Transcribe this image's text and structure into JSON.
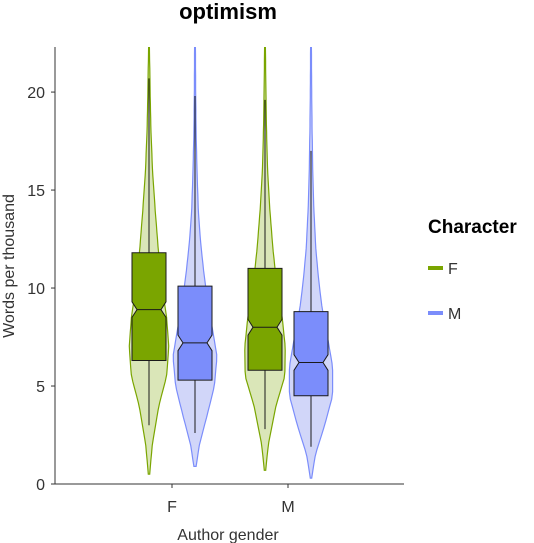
{
  "chart_data": {
    "type": "violin",
    "title": "optimism",
    "xlabel": "Author gender",
    "ylabel": "Words per thousand",
    "ylim": [
      0,
      22.3
    ],
    "yticks": [
      0,
      5,
      10,
      15,
      20
    ],
    "categories": [
      "F",
      "M"
    ],
    "legend": {
      "title": "Character",
      "position": "right",
      "entries": [
        {
          "label": "F",
          "color": "#7aa500"
        },
        {
          "label": "M",
          "color": "#7b8dfb"
        }
      ]
    },
    "series": [
      {
        "name": "F",
        "color": "#7aa500",
        "fill": "#d1e0a6",
        "groups": [
          {
            "category": "F",
            "min": 0.5,
            "max": 22.3,
            "whisker_low": 3.0,
            "whisker_high": 20.7,
            "q1": 6.3,
            "median": 8.9,
            "q3": 11.8,
            "notch_low": 8.5,
            "notch_high": 9.3,
            "density": [
              [
                0.5,
                0.03
              ],
              [
                2,
                0.15
              ],
              [
                4,
                0.45
              ],
              [
                5.5,
                0.8
              ],
              [
                7,
                0.9
              ],
              [
                8.5,
                0.8
              ],
              [
                10,
                0.6
              ],
              [
                12,
                0.42
              ],
              [
                14,
                0.28
              ],
              [
                16,
                0.16
              ],
              [
                18,
                0.09
              ],
              [
                20,
                0.05
              ],
              [
                22.3,
                0.02
              ]
            ]
          },
          {
            "category": "M",
            "min": 0.7,
            "max": 22.3,
            "whisker_low": 2.8,
            "whisker_high": 19.6,
            "q1": 5.8,
            "median": 8.0,
            "q3": 11.0,
            "notch_low": 7.6,
            "notch_high": 8.4,
            "density": [
              [
                0.7,
                0.03
              ],
              [
                2,
                0.15
              ],
              [
                4,
                0.5
              ],
              [
                5.5,
                0.9
              ],
              [
                7,
                0.92
              ],
              [
                8.5,
                0.78
              ],
              [
                10,
                0.55
              ],
              [
                12,
                0.36
              ],
              [
                14,
                0.22
              ],
              [
                16,
                0.12
              ],
              [
                18,
                0.07
              ],
              [
                20,
                0.04
              ],
              [
                22.3,
                0.02
              ]
            ]
          }
        ]
      },
      {
        "name": "M",
        "color": "#7b8dfb",
        "fill": "#c6ccf8",
        "groups": [
          {
            "category": "F",
            "min": 0.9,
            "max": 22.3,
            "whisker_low": 2.6,
            "whisker_high": 19.8,
            "q1": 5.3,
            "median": 7.2,
            "q3": 10.1,
            "notch_low": 6.8,
            "notch_high": 7.6,
            "density": [
              [
                0.9,
                0.05
              ],
              [
                2,
                0.2
              ],
              [
                3.5,
                0.55
              ],
              [
                5,
                0.88
              ],
              [
                6.5,
                1.0
              ],
              [
                8,
                0.78
              ],
              [
                9.5,
                0.55
              ],
              [
                11,
                0.38
              ],
              [
                12.5,
                0.24
              ],
              [
                14,
                0.15
              ],
              [
                16,
                0.09
              ],
              [
                18,
                0.05
              ],
              [
                20,
                0.03
              ],
              [
                22.3,
                0.02
              ]
            ]
          },
          {
            "category": "M",
            "min": 0.3,
            "max": 22.3,
            "whisker_low": 1.9,
            "whisker_high": 17.0,
            "q1": 4.5,
            "median": 6.2,
            "q3": 8.8,
            "notch_low": 5.8,
            "notch_high": 6.6,
            "density": [
              [
                0.3,
                0.03
              ],
              [
                1.5,
                0.2
              ],
              [
                3,
                0.62
              ],
              [
                4.5,
                0.98
              ],
              [
                6,
                0.98
              ],
              [
                7.5,
                0.75
              ],
              [
                9,
                0.5
              ],
              [
                10.5,
                0.34
              ],
              [
                12,
                0.22
              ],
              [
                14,
                0.13
              ],
              [
                16,
                0.08
              ],
              [
                18,
                0.05
              ],
              [
                20,
                0.03
              ],
              [
                22.3,
                0.02
              ]
            ]
          }
        ]
      }
    ]
  }
}
